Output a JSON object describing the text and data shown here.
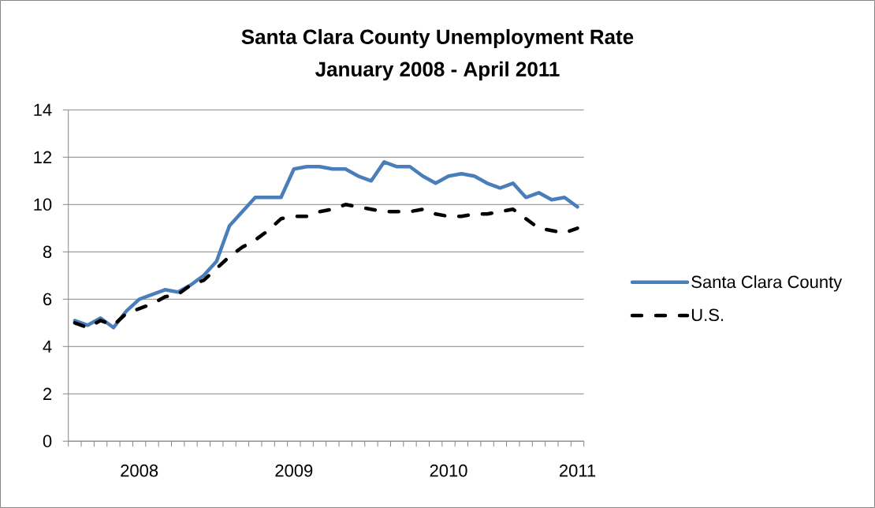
{
  "chart_data": {
    "type": "line",
    "title": "Santa Clara County Unemployment Rate",
    "subtitle": "January 2008 - April 2011",
    "categories": [
      null,
      null,
      null,
      null,
      null,
      "2008",
      null,
      null,
      null,
      null,
      null,
      null,
      null,
      null,
      null,
      null,
      null,
      "2009",
      null,
      null,
      null,
      null,
      null,
      null,
      null,
      null,
      null,
      null,
      null,
      "2010",
      null,
      null,
      null,
      null,
      null,
      null,
      null,
      null,
      null,
      "2011"
    ],
    "series": [
      {
        "name": "Santa Clara County",
        "color": "#4a7ebb",
        "line_style": "solid",
        "values": [
          5.1,
          4.9,
          5.2,
          4.8,
          5.5,
          6.0,
          6.2,
          6.4,
          6.3,
          6.6,
          7.0,
          7.6,
          9.1,
          9.7,
          10.3,
          10.3,
          10.3,
          11.5,
          11.6,
          11.6,
          11.5,
          11.5,
          11.2,
          11.0,
          11.8,
          11.6,
          11.6,
          11.2,
          10.9,
          11.2,
          11.3,
          11.2,
          10.9,
          10.7,
          10.9,
          10.3,
          10.5,
          10.2,
          10.3,
          9.9
        ]
      },
      {
        "name": "U.S.",
        "color": "#000000",
        "line_style": "dashed",
        "values": [
          5.0,
          4.8,
          5.1,
          4.9,
          5.4,
          5.6,
          5.8,
          6.1,
          6.2,
          6.6,
          6.8,
          7.3,
          7.8,
          8.2,
          8.5,
          8.9,
          9.4,
          9.5,
          9.5,
          9.7,
          9.8,
          10.0,
          9.9,
          9.8,
          9.7,
          9.7,
          9.7,
          9.8,
          9.6,
          9.5,
          9.5,
          9.6,
          9.6,
          9.7,
          9.8,
          9.4,
          9.0,
          8.9,
          8.8,
          9.0
        ]
      }
    ],
    "ylim": [
      0,
      14
    ],
    "yticks": [
      0,
      2,
      4,
      6,
      8,
      10,
      12,
      14
    ],
    "grid": "y",
    "legend": "right"
  }
}
